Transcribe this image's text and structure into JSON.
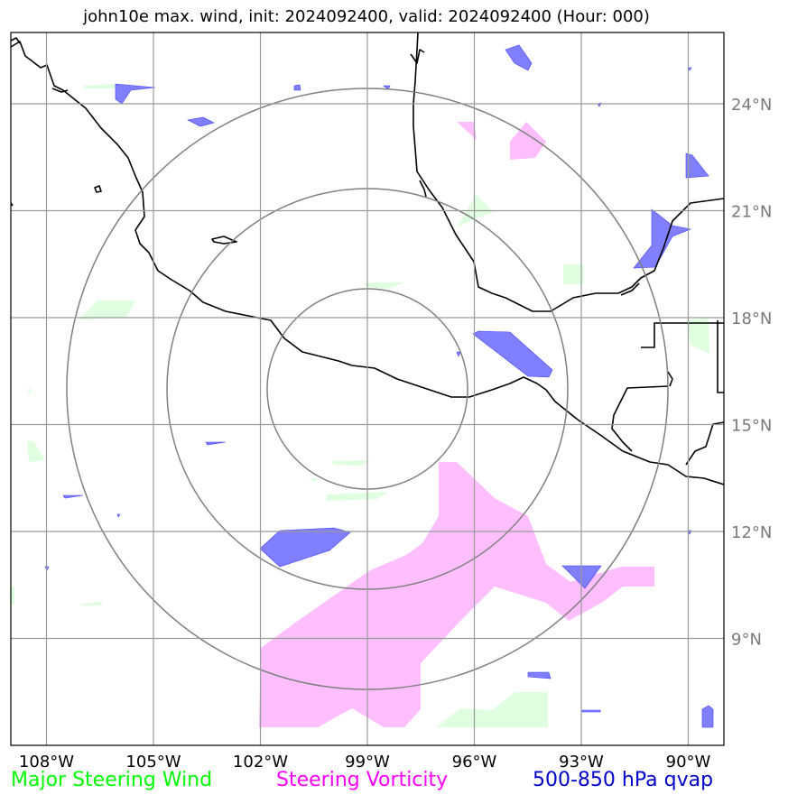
{
  "title": "john10e max. wind, init: 2024092400, valid: 2024092400 (Hour: 000)",
  "map": {
    "extent": {
      "lon": [
        -109,
        -89
      ],
      "lat": [
        6,
        26
      ]
    },
    "center": {
      "lon": -99,
      "lat": 16
    },
    "range_rings": [
      3,
      6,
      9
    ],
    "gridlines": true,
    "lon_ticks": [
      {
        "value": -108,
        "label": "108°W"
      },
      {
        "value": -105,
        "label": "105°W"
      },
      {
        "value": -102,
        "label": "102°W"
      },
      {
        "value": -99,
        "label": "99°W"
      },
      {
        "value": -96,
        "label": "96°W"
      },
      {
        "value": -93,
        "label": "93°W"
      },
      {
        "value": -90,
        "label": "90°W"
      }
    ],
    "lat_ticks": [
      {
        "value": 9,
        "label": "9°N"
      },
      {
        "value": 12,
        "label": "12°N"
      },
      {
        "value": 15,
        "label": "15°N"
      },
      {
        "value": 18,
        "label": "18°N"
      },
      {
        "value": 21,
        "label": "21°N"
      },
      {
        "value": 24,
        "label": "24°N"
      }
    ],
    "colors": {
      "wind": "#00ff00",
      "wind_fill": "#e0ffe0",
      "vorticity": "#ff00ff",
      "vorticity_fill": "#ffbfff",
      "qvap": "#0000cc",
      "qvap_fill": "#7f7fff",
      "grid": "#9a9a9a",
      "rings": "#7f7f7f",
      "coast": "#000000"
    }
  },
  "legend": {
    "wind": "Major Steering Wind",
    "vorticity": "Steering Vorticity",
    "qvap": "500-850 hPa qvap"
  }
}
